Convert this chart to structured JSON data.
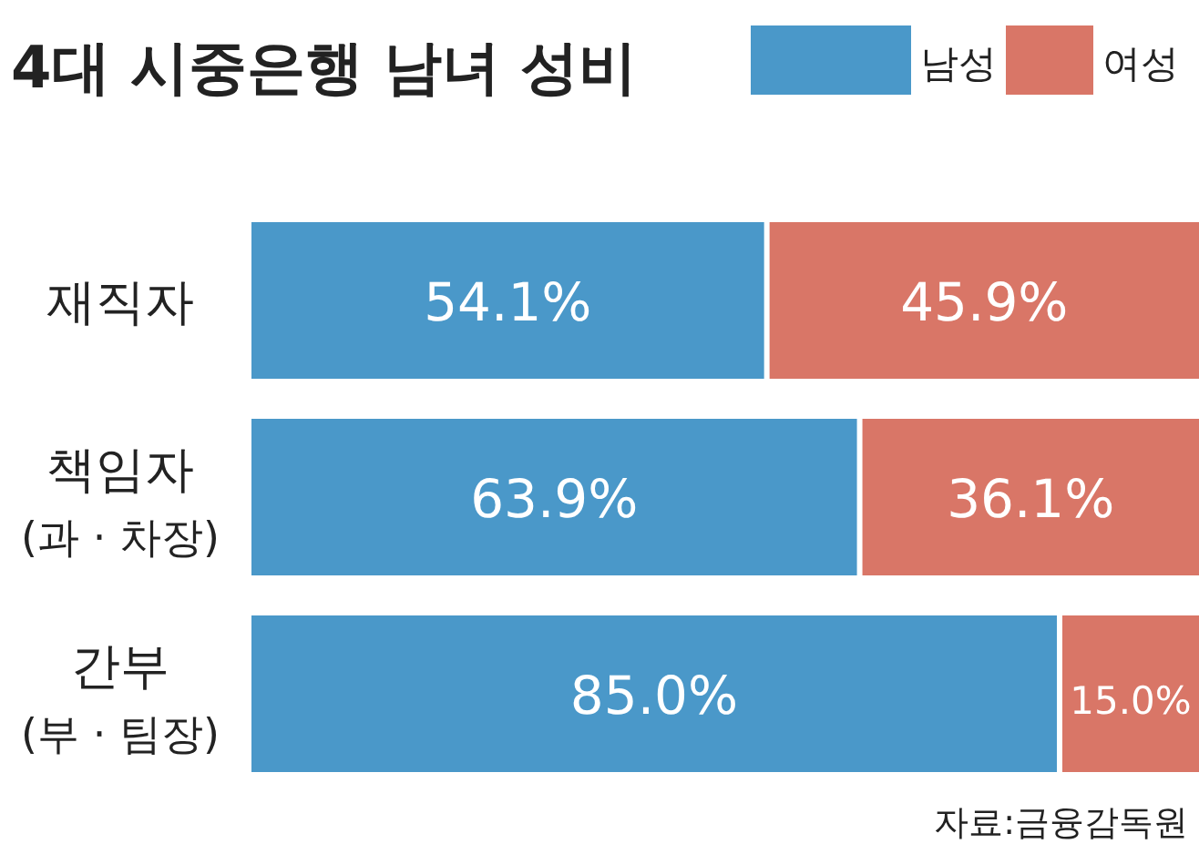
{
  "chart_data": {
    "type": "bar",
    "orientation": "horizontal",
    "stacked": true,
    "title": "4대 시중은행 남녀 성비",
    "categories": [
      "재직자",
      "책임자\n(과 · 차장)",
      "간부\n(부 · 팀장)"
    ],
    "xlim": [
      0,
      100
    ],
    "legend": "top right",
    "series": [
      {
        "name": "남성",
        "color": "#4a98c9",
        "values": [
          54.1,
          63.9,
          85.0
        ],
        "value_labels": [
          "54.1%",
          "63.9%",
          "85.0%"
        ]
      },
      {
        "name": "여성",
        "color": "#d97667",
        "values": [
          45.9,
          36.1,
          15.0
        ],
        "value_labels": [
          "45.9%",
          "36.1%",
          "15.0%"
        ]
      }
    ],
    "annotations": [
      "자료:금융감독원"
    ]
  }
}
